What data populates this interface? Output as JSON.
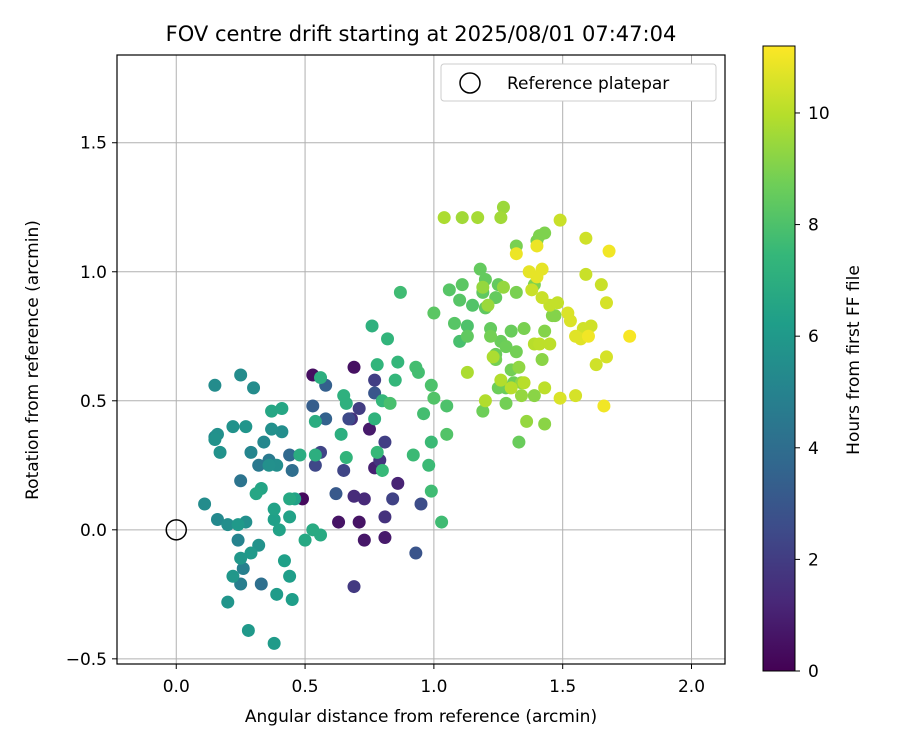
{
  "chart_data": {
    "type": "scatter",
    "title": "FOV centre drift starting at 2025/08/01 07:47:04",
    "xlabel": "Angular distance from reference (arcmin)",
    "ylabel": "Rotation from reference (arcmin)",
    "xlim": [
      -0.23,
      2.13
    ],
    "ylim": [
      -0.52,
      1.84
    ],
    "x_ticks": [
      {
        "value": 0.0,
        "label": "0.0"
      },
      {
        "value": 0.5,
        "label": "0.5"
      },
      {
        "value": 1.0,
        "label": "1.0"
      },
      {
        "value": 1.5,
        "label": "1.5"
      },
      {
        "value": 2.0,
        "label": "2.0"
      }
    ],
    "y_ticks": [
      {
        "value": -0.5,
        "label": "−0.5"
      },
      {
        "value": 0.0,
        "label": "0.0"
      },
      {
        "value": 0.5,
        "label": "0.5"
      },
      {
        "value": 1.0,
        "label": "1.0"
      },
      {
        "value": 1.5,
        "label": "1.5"
      }
    ],
    "grid": true,
    "legend": {
      "placement": "top-right",
      "entries": [
        {
          "label": "Reference platepar",
          "marker": "hollow-circle"
        }
      ]
    },
    "reference_point": {
      "x": 0.0,
      "y": 0.0
    },
    "colorbar": {
      "label": "Hours from first FF file",
      "colormap": "viridis",
      "range": [
        0,
        11.2
      ],
      "ticks": [
        {
          "value": 0,
          "label": "0"
        },
        {
          "value": 2,
          "label": "2"
        },
        {
          "value": 4,
          "label": "4"
        },
        {
          "value": 6,
          "label": "6"
        },
        {
          "value": 8,
          "label": "8"
        },
        {
          "value": 10,
          "label": "10"
        }
      ]
    },
    "points": [
      [
        0.49,
        0.12,
        0.3
      ],
      [
        0.53,
        0.6,
        0.4
      ],
      [
        0.69,
        0.63,
        0.5
      ],
      [
        0.63,
        0.03,
        0.6
      ],
      [
        0.71,
        0.03,
        0.6
      ],
      [
        0.73,
        -0.04,
        0.7
      ],
      [
        0.81,
        -0.03,
        0.8
      ],
      [
        0.75,
        0.39,
        0.8
      ],
      [
        0.77,
        0.24,
        1.0
      ],
      [
        0.86,
        0.18,
        1.1
      ],
      [
        0.73,
        0.12,
        1.3
      ],
      [
        0.69,
        0.13,
        1.4
      ],
      [
        0.68,
        0.43,
        1.5
      ],
      [
        0.81,
        0.05,
        1.6
      ],
      [
        0.79,
        0.27,
        1.7
      ],
      [
        0.69,
        -0.22,
        1.9
      ],
      [
        0.71,
        0.47,
        2.0
      ],
      [
        0.77,
        0.58,
        2.1
      ],
      [
        0.81,
        0.34,
        2.1
      ],
      [
        0.84,
        0.12,
        2.2
      ],
      [
        0.56,
        0.3,
        2.3
      ],
      [
        0.54,
        0.25,
        2.4
      ],
      [
        0.65,
        0.23,
        2.3
      ],
      [
        0.67,
        0.43,
        2.5
      ],
      [
        0.95,
        0.1,
        2.6
      ],
      [
        0.93,
        -0.09,
        2.9
      ],
      [
        0.77,
        0.53,
        3.0
      ],
      [
        0.62,
        0.14,
        3.1
      ],
      [
        0.53,
        0.48,
        3.3
      ],
      [
        0.58,
        0.56,
        3.4
      ],
      [
        0.58,
        0.43,
        3.5
      ],
      [
        0.44,
        0.29,
        3.8
      ],
      [
        0.45,
        0.23,
        4.0
      ],
      [
        0.33,
        -0.21,
        4.1
      ],
      [
        0.25,
        0.19,
        4.3
      ],
      [
        0.32,
        0.25,
        4.5
      ],
      [
        0.36,
        0.27,
        4.6
      ],
      [
        0.25,
        -0.21,
        4.8
      ],
      [
        0.26,
        -0.15,
        4.9
      ],
      [
        0.24,
        -0.04,
        5.0
      ],
      [
        0.29,
        0.3,
        5.1
      ],
      [
        0.34,
        0.34,
        5.2
      ],
      [
        0.15,
        0.36,
        5.2
      ],
      [
        0.16,
        0.04,
        5.3
      ],
      [
        0.15,
        0.56,
        5.4
      ],
      [
        0.25,
        0.6,
        5.4
      ],
      [
        0.3,
        0.55,
        5.4
      ],
      [
        0.41,
        0.38,
        5.5
      ],
      [
        0.37,
        0.39,
        5.6
      ],
      [
        0.39,
        0.25,
        5.5
      ],
      [
        0.36,
        0.25,
        5.6
      ],
      [
        0.16,
        0.37,
        5.6
      ],
      [
        0.15,
        0.35,
        5.7
      ],
      [
        0.17,
        0.3,
        5.7
      ],
      [
        0.22,
        0.4,
        5.7
      ],
      [
        0.27,
        0.4,
        5.8
      ],
      [
        0.2,
        -0.28,
        5.8
      ],
      [
        0.22,
        -0.18,
        5.9
      ],
      [
        0.25,
        -0.11,
        5.9
      ],
      [
        0.24,
        0.02,
        6.0
      ],
      [
        0.29,
        -0.09,
        6.0
      ],
      [
        0.28,
        -0.39,
        6.0
      ],
      [
        0.38,
        -0.44,
        6.1
      ],
      [
        0.39,
        -0.25,
        6.1
      ],
      [
        0.44,
        -0.18,
        6.2
      ],
      [
        0.45,
        -0.27,
        6.2
      ],
      [
        0.42,
        -0.12,
        6.3
      ],
      [
        0.38,
        0.04,
        6.3
      ],
      [
        0.38,
        0.08,
        6.4
      ],
      [
        0.4,
        0.0,
        6.4
      ],
      [
        0.44,
        0.05,
        6.4
      ],
      [
        0.46,
        0.12,
        6.4
      ],
      [
        0.33,
        0.16,
        6.5
      ],
      [
        0.31,
        0.14,
        6.6
      ],
      [
        0.37,
        0.46,
        6.6
      ],
      [
        0.41,
        0.47,
        6.6
      ],
      [
        0.44,
        0.12,
        6.7
      ],
      [
        0.5,
        -0.04,
        6.7
      ],
      [
        0.53,
        0.0,
        6.8
      ],
      [
        0.56,
        -0.02,
        6.8
      ],
      [
        0.48,
        0.29,
        6.9
      ],
      [
        0.54,
        0.42,
        6.9
      ],
      [
        0.64,
        0.37,
        7.0
      ],
      [
        0.54,
        0.29,
        7.0
      ],
      [
        0.11,
        0.1,
        5.4
      ],
      [
        0.2,
        0.02,
        5.5
      ],
      [
        0.27,
        0.03,
        5.6
      ],
      [
        0.32,
        -0.06,
        5.7
      ],
      [
        0.56,
        0.59,
        7.0
      ],
      [
        0.65,
        0.52,
        7.1
      ],
      [
        0.66,
        0.49,
        7.1
      ],
      [
        0.76,
        0.79,
        7.1
      ],
      [
        0.77,
        0.43,
        7.2
      ],
      [
        0.66,
        0.28,
        7.3
      ],
      [
        0.82,
        0.74,
        7.3
      ],
      [
        0.78,
        0.64,
        7.3
      ],
      [
        0.8,
        0.5,
        7.4
      ],
      [
        0.85,
        0.58,
        7.4
      ],
      [
        0.86,
        0.65,
        7.4
      ],
      [
        0.8,
        0.23,
        7.5
      ],
      [
        0.78,
        0.3,
        7.5
      ],
      [
        0.92,
        0.29,
        7.6
      ],
      [
        0.98,
        0.25,
        7.6
      ],
      [
        0.99,
        0.34,
        7.6
      ],
      [
        1.03,
        0.03,
        7.7
      ],
      [
        0.99,
        0.15,
        7.7
      ],
      [
        0.93,
        0.63,
        7.8
      ],
      [
        0.94,
        0.61,
        7.8
      ],
      [
        0.96,
        0.45,
        7.8
      ],
      [
        0.83,
        0.49,
        7.9
      ],
      [
        0.99,
        0.56,
        8.0
      ],
      [
        1.05,
        0.48,
        8.0
      ],
      [
        1.05,
        0.37,
        8.1
      ],
      [
        1.0,
        0.51,
        8.1
      ],
      [
        0.87,
        0.92,
        7.7
      ],
      [
        1.1,
        0.73,
        7.9
      ],
      [
        1.13,
        0.79,
        8.0
      ],
      [
        1.15,
        0.87,
        8.1
      ],
      [
        1.1,
        0.89,
        8.2
      ],
      [
        1.08,
        0.8,
        8.2
      ],
      [
        1.0,
        0.84,
        8.3
      ],
      [
        1.06,
        0.93,
        8.2
      ],
      [
        1.11,
        0.95,
        8.3
      ],
      [
        1.13,
        0.75,
        8.4
      ],
      [
        1.19,
        0.92,
        8.4
      ],
      [
        1.2,
        0.86,
        8.4
      ],
      [
        1.24,
        0.9,
        8.5
      ],
      [
        1.22,
        0.78,
        8.5
      ],
      [
        1.26,
        0.73,
        8.6
      ],
      [
        1.3,
        0.77,
        8.6
      ],
      [
        1.28,
        0.55,
        8.6
      ],
      [
        1.31,
        0.57,
        8.7
      ],
      [
        1.33,
        0.34,
        8.6
      ],
      [
        1.25,
        0.55,
        8.7
      ],
      [
        1.28,
        0.49,
        8.8
      ],
      [
        1.19,
        0.46,
        8.7
      ],
      [
        1.24,
        0.66,
        8.8
      ],
      [
        1.3,
        0.62,
        8.8
      ],
      [
        1.32,
        0.69,
        8.8
      ],
      [
        1.35,
        0.78,
        8.9
      ],
      [
        1.32,
        0.92,
        8.9
      ],
      [
        1.39,
        0.95,
        9.0
      ],
      [
        1.32,
        1.1,
        8.9
      ],
      [
        1.4,
        1.12,
        8.9
      ],
      [
        1.41,
        1.14,
        9.0
      ],
      [
        1.43,
        1.15,
        9.0
      ],
      [
        1.47,
        0.83,
        9.1
      ],
      [
        1.43,
        0.77,
        9.1
      ],
      [
        1.46,
        0.83,
        9.1
      ],
      [
        1.42,
        0.66,
        9.2
      ],
      [
        1.39,
        0.52,
        9.2
      ],
      [
        1.43,
        0.41,
        9.2
      ],
      [
        1.33,
        0.63,
        9.3
      ],
      [
        1.34,
        0.57,
        9.3
      ],
      [
        1.34,
        0.52,
        9.4
      ],
      [
        1.36,
        0.42,
        9.4
      ],
      [
        1.19,
        0.94,
        9.4
      ],
      [
        1.21,
        0.87,
        9.5
      ],
      [
        1.27,
        0.94,
        9.4
      ],
      [
        1.27,
        1.25,
        9.5
      ],
      [
        1.26,
        1.21,
        9.6
      ],
      [
        1.17,
        1.21,
        9.7
      ],
      [
        1.11,
        1.21,
        9.6
      ],
      [
        1.04,
        1.21,
        9.8
      ],
      [
        1.13,
        0.61,
        9.8
      ],
      [
        1.2,
        0.5,
        9.9
      ],
      [
        1.23,
        0.67,
        9.8
      ],
      [
        1.26,
        0.58,
        9.9
      ],
      [
        1.3,
        0.55,
        10.0
      ],
      [
        1.35,
        0.57,
        10.0
      ],
      [
        1.43,
        0.55,
        10.1
      ],
      [
        1.39,
        0.72,
        10.0
      ],
      [
        1.41,
        0.72,
        10.1
      ],
      [
        1.45,
        0.72,
        10.1
      ],
      [
        1.45,
        0.87,
        10.2
      ],
      [
        1.48,
        0.88,
        10.2
      ],
      [
        1.38,
        0.93,
        10.3
      ],
      [
        1.42,
        0.9,
        10.3
      ],
      [
        1.49,
        1.2,
        10.3
      ],
      [
        1.59,
        1.13,
        10.4
      ],
      [
        1.59,
        0.99,
        10.3
      ],
      [
        1.58,
        0.78,
        10.4
      ],
      [
        1.61,
        0.79,
        10.4
      ],
      [
        1.63,
        0.64,
        10.4
      ],
      [
        1.65,
        0.95,
        10.3
      ],
      [
        1.67,
        0.88,
        10.5
      ],
      [
        1.67,
        0.67,
        10.5
      ],
      [
        1.55,
        0.52,
        10.5
      ],
      [
        1.49,
        0.51,
        10.6
      ],
      [
        1.52,
        0.84,
        10.6
      ],
      [
        1.53,
        0.81,
        10.6
      ],
      [
        1.57,
        0.74,
        10.7
      ],
      [
        1.55,
        0.75,
        10.7
      ],
      [
        1.42,
        1.01,
        10.8
      ],
      [
        1.4,
        0.98,
        10.8
      ],
      [
        1.37,
        1.0,
        10.8
      ],
      [
        1.4,
        1.1,
        10.9
      ],
      [
        1.32,
        1.07,
        10.9
      ],
      [
        1.66,
        0.48,
        11.0
      ],
      [
        1.68,
        1.08,
        11.0
      ],
      [
        1.76,
        0.75,
        11.1
      ],
      [
        1.6,
        0.75,
        11.0
      ],
      [
        1.2,
        0.97,
        8.5
      ],
      [
        1.18,
        1.01,
        8.5
      ],
      [
        1.25,
        0.95,
        8.5
      ],
      [
        1.22,
        0.75,
        8.8
      ],
      [
        1.24,
        0.68,
        8.6
      ],
      [
        1.28,
        0.71,
        8.7
      ]
    ]
  }
}
